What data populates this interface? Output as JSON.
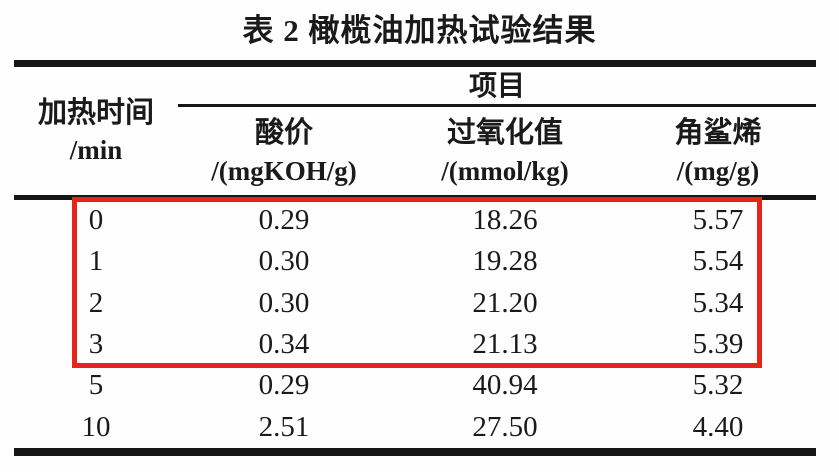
{
  "title": "表 2 橄榄油加热试验结果",
  "colors": {
    "text": "#1a1a1a",
    "rule": "#161616",
    "highlight_border": "#e8231a",
    "background": "#fefefe"
  },
  "table": {
    "row_header": {
      "label": "加热时间",
      "unit": "/min"
    },
    "group_header": "项目",
    "columns": [
      {
        "label": "酸价",
        "unit": "/(mgKOH/g)"
      },
      {
        "label": "过氧化值",
        "unit": "/(mmol/kg)"
      },
      {
        "label": "角鲨烯",
        "unit": "/(mg/g)"
      }
    ],
    "rows": [
      {
        "time": "0",
        "values": [
          "0.29",
          "18.26",
          "5.57"
        ]
      },
      {
        "time": "1",
        "values": [
          "0.30",
          "19.28",
          "5.54"
        ]
      },
      {
        "time": "2",
        "values": [
          "0.30",
          "21.20",
          "5.34"
        ]
      },
      {
        "time": "3",
        "values": [
          "0.34",
          "21.13",
          "5.39"
        ]
      },
      {
        "time": "5",
        "values": [
          "0.29",
          "40.94",
          "5.32"
        ]
      },
      {
        "time": "10",
        "values": [
          "2.51",
          "27.50",
          "4.40"
        ]
      }
    ],
    "highlight": {
      "description": "red box around rows 0-3",
      "row_range": "0–3"
    }
  }
}
